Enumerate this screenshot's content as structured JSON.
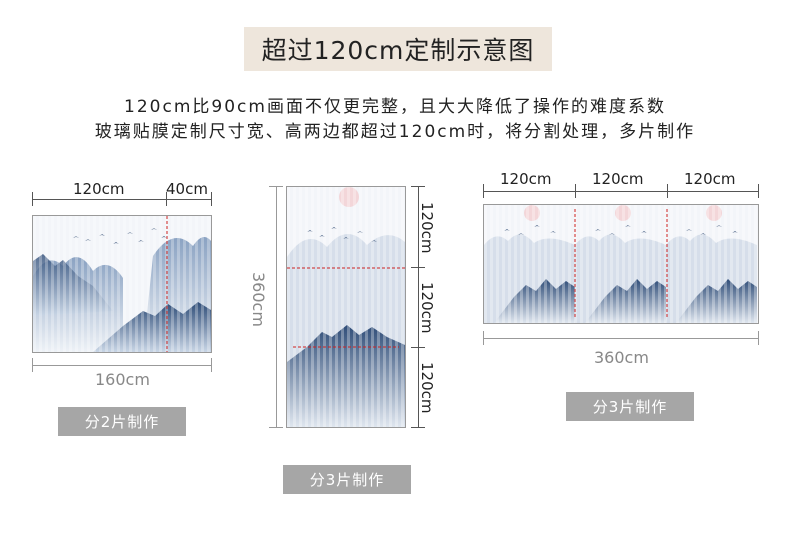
{
  "title": "超过120cm定制示意图",
  "description": {
    "line1": "120cm比90cm画面不仅更完整，且大大降低了操作的难度系数",
    "line2": "玻璃贴膜定制尺寸宽、高两边都超过120cm时，将分割处理，多片制作"
  },
  "example_left": {
    "top_dims": [
      "120cm",
      "40cm"
    ],
    "bottom_dim": "160cm",
    "badge": "分2片制作"
  },
  "example_middle": {
    "left_dim": "360cm",
    "right_dims": [
      "120cm",
      "120cm",
      "120cm"
    ],
    "badge": "分3片制作"
  },
  "example_right": {
    "top_dims": [
      "120cm",
      "120cm",
      "120cm"
    ],
    "bottom_dim": "360cm",
    "badge": "分3片制作"
  },
  "colors": {
    "title_bg": "#eee6dc",
    "badge_bg": "#a6a6a6",
    "split_line": "#cc2222",
    "mountain_dark": "#3d5a80",
    "mountain_light": "#9fb3cc"
  }
}
